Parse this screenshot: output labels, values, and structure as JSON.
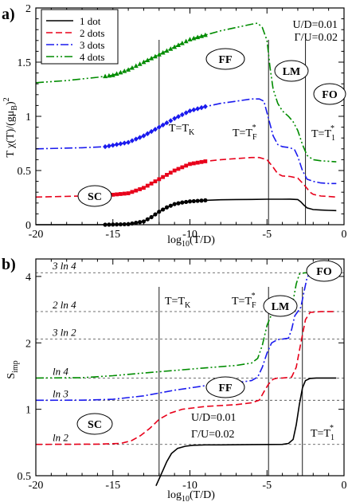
{
  "chart_data": [
    {
      "panel_label": "a)",
      "type": "line",
      "ylabel": "T χ(T)/(gμ",
      "ylabel_sub": "B",
      "ylabel_end": ")",
      "ylabel_sup": "2",
      "xlabel": "log",
      "xlabel_sub": "10",
      "xlabel_end": "(T/D)",
      "xlim": [
        -20,
        0
      ],
      "ylim": [
        0,
        2
      ],
      "xticks": [
        -20,
        -15,
        -10,
        -5,
        0
      ],
      "yticks": [
        0,
        0.5,
        1,
        1.5,
        2
      ],
      "ytick_labels": [
        "0",
        "0.5",
        "1",
        "1.5",
        "2"
      ],
      "legend_position": "top-left",
      "params": [
        "U/D=0.01",
        "Γ/U=0.02"
      ],
      "series": [
        {
          "name": "1 dot",
          "color": "#000000",
          "dash": "solid",
          "marker": "circle",
          "x": [
            -20,
            -15.5,
            -14,
            -13,
            -12.5,
            -12,
            -11.5,
            -11,
            -10.5,
            -10,
            -9.5,
            -9,
            -8,
            -7,
            -6,
            -5,
            -4,
            -3.5,
            -3,
            -2.8,
            -2.6,
            -2.4,
            -2,
            -1.5,
            -1,
            -0.5
          ],
          "y": [
            0,
            0,
            0.005,
            0.03,
            0.07,
            0.12,
            0.16,
            0.19,
            0.205,
            0.215,
            0.22,
            0.225,
            0.23,
            0.232,
            0.233,
            0.235,
            0.235,
            0.236,
            0.232,
            0.21,
            0.18,
            0.155,
            0.14,
            0.135,
            0.132,
            0.13
          ],
          "marker_range": [
            -15.5,
            -9
          ]
        },
        {
          "name": "2 dots",
          "color": "#e8001a",
          "dash": "8,4",
          "marker": "square",
          "x": [
            -20,
            -17,
            -15.5,
            -14,
            -13,
            -12,
            -11,
            -10,
            -9,
            -8,
            -7,
            -6,
            -5.5,
            -5,
            -4.6,
            -4.3,
            -4,
            -3.5,
            -3,
            -2.6,
            -2.2,
            -2,
            -1.5,
            -1,
            -0.5
          ],
          "y": [
            0.255,
            0.265,
            0.27,
            0.29,
            0.34,
            0.42,
            0.5,
            0.56,
            0.585,
            0.6,
            0.61,
            0.62,
            0.62,
            0.6,
            0.53,
            0.47,
            0.45,
            0.445,
            0.43,
            0.37,
            0.3,
            0.28,
            0.265,
            0.26,
            0.255
          ],
          "marker_range": [
            -15.5,
            -9
          ]
        },
        {
          "name": "3 dots",
          "color": "#1a1aee",
          "dash": "10,3,2,3",
          "marker": "diamond",
          "x": [
            -20,
            -17,
            -15.5,
            -14,
            -13,
            -12,
            -11,
            -10,
            -9,
            -8,
            -7,
            -6,
            -5.5,
            -5.2,
            -4.9,
            -4.6,
            -4.3,
            -4,
            -3.5,
            -3.2,
            -3,
            -2.7,
            -2.4,
            -2,
            -1.5,
            -1,
            -0.5
          ],
          "y": [
            0.7,
            0.71,
            0.72,
            0.76,
            0.82,
            0.9,
            0.98,
            1.05,
            1.09,
            1.12,
            1.14,
            1.16,
            1.16,
            1.14,
            0.98,
            0.82,
            0.74,
            0.72,
            0.71,
            0.69,
            0.63,
            0.5,
            0.42,
            0.4,
            0.385,
            0.38,
            0.38
          ],
          "marker_range": [
            -15.5,
            -9
          ]
        },
        {
          "name": "4 dots",
          "color": "#008c00",
          "dash": "10,3,2,3,2,3",
          "marker": "triangle",
          "x": [
            -20,
            -18,
            -16,
            -15,
            -14,
            -13,
            -12,
            -11,
            -10,
            -9,
            -8,
            -7,
            -6,
            -5.6,
            -5.3,
            -5,
            -4.8,
            -4.6,
            -4.3,
            -4,
            -3.6,
            -3.3,
            -3,
            -2.7,
            -2.4,
            -2,
            -1.5,
            -1,
            -0.5
          ],
          "y": [
            1.31,
            1.33,
            1.36,
            1.38,
            1.43,
            1.5,
            1.57,
            1.64,
            1.71,
            1.75,
            1.79,
            1.82,
            1.85,
            1.86,
            1.82,
            1.7,
            1.45,
            1.25,
            1.12,
            1.05,
            1.0,
            0.95,
            0.87,
            0.74,
            0.64,
            0.6,
            0.59,
            0.585,
            0.58
          ],
          "marker_range": [
            -15.5,
            -9
          ]
        }
      ],
      "vlines": [
        {
          "x": -12,
          "label": "T=T",
          "sub": "K",
          "sup": ""
        },
        {
          "x": -4.9,
          "label": "T=T",
          "sub": "F",
          "sup": "*"
        },
        {
          "x": -2.5,
          "label": "T=T",
          "sub": "1",
          "sup": "*"
        }
      ],
      "regions": [
        "FF",
        "LM",
        "FO",
        "SC"
      ]
    },
    {
      "panel_label": "b)",
      "type": "line",
      "ylabel": "S",
      "ylabel_sub": "imp",
      "xlabel": "log",
      "xlabel_sub": "10",
      "xlabel_end": "(T/D)",
      "xlim": [
        -20,
        0
      ],
      "ylim_ln": [
        0.5,
        4.8
      ],
      "yscale": "log",
      "xticks": [
        -20,
        -15,
        -10,
        -5,
        0
      ],
      "yticks": [
        0.5,
        1,
        2,
        4
      ],
      "ytick_labels": [
        "0.5",
        "1",
        "2",
        "4"
      ],
      "params": [
        "U/D=0.01",
        "Γ/U=0.02"
      ],
      "reference_lines": [
        {
          "label": "3 ln 4",
          "value": 4.159
        },
        {
          "label": "2 ln 4",
          "value": 2.773
        },
        {
          "label": "3 ln 2",
          "value": 2.079
        },
        {
          "label": "ln 4",
          "value": 1.386
        },
        {
          "label": "ln 3",
          "value": 1.099
        },
        {
          "label": "ln 2",
          "value": 0.693
        }
      ],
      "series": [
        {
          "name": "1 dot",
          "color": "#000000",
          "dash": "solid",
          "x": [
            -12.2,
            -11.8,
            -11.5,
            -11.2,
            -10.8,
            -10.3,
            -9.8,
            -9,
            -8,
            -6,
            -4,
            -3.6,
            -3.3,
            -3.1,
            -2.9,
            -2.7,
            -2.5,
            -2.2,
            -1.8,
            -1,
            -0.5
          ],
          "y": [
            0.45,
            0.52,
            0.58,
            0.63,
            0.665,
            0.68,
            0.687,
            0.69,
            0.69,
            0.692,
            0.693,
            0.7,
            0.73,
            0.85,
            1.05,
            1.25,
            1.35,
            1.38,
            1.386,
            1.386,
            1.386
          ]
        },
        {
          "name": "2 dots",
          "color": "#e8001a",
          "dash": "8,4",
          "marker": "none",
          "x": [
            -20,
            -16,
            -14.5,
            -13.8,
            -13.2,
            -12.6,
            -12,
            -11.3,
            -10.5,
            -9,
            -7,
            -6,
            -5.5,
            -5.2,
            -4.9,
            -4.6,
            -4.3,
            -4,
            -3.4,
            -3.1,
            -2.8,
            -2.5,
            -2.2,
            -1.5,
            -0.5
          ],
          "y": [
            0.693,
            0.695,
            0.7,
            0.72,
            0.76,
            0.82,
            0.9,
            0.96,
            1.0,
            1.03,
            1.05,
            1.07,
            1.1,
            1.2,
            1.3,
            1.37,
            1.386,
            1.386,
            1.4,
            1.55,
            2.0,
            2.55,
            2.75,
            2.77,
            2.773
          ]
        },
        {
          "name": "3 dots",
          "color": "#1a1aee",
          "dash": "10,3,2,3",
          "x": [
            -20,
            -17,
            -15,
            -13,
            -11,
            -9,
            -7,
            -6,
            -5.6,
            -5.3,
            -5,
            -4.7,
            -4.3,
            -4,
            -3.6,
            -3.4,
            -3.2,
            -3,
            -2.8,
            -2.6,
            -2.4,
            -2.2,
            -1.5,
            -0.5
          ],
          "y": [
            1.099,
            1.1,
            1.11,
            1.15,
            1.22,
            1.28,
            1.32,
            1.35,
            1.4,
            1.55,
            1.8,
            2.0,
            2.07,
            2.079,
            2.1,
            2.3,
            2.65,
            2.77,
            2.9,
            3.4,
            3.95,
            4.15,
            4.159,
            4.159
          ]
        },
        {
          "name": "4 dots",
          "color": "#008c00",
          "dash": "10,3,2,3,2,3",
          "x": [
            -20,
            -17,
            -15,
            -13,
            -11,
            -9,
            -7,
            -6,
            -5.6,
            -5.3,
            -5,
            -4.7,
            -4.3,
            -4,
            -3.6,
            -3.3,
            -3.1,
            -2.9,
            -2.6,
            -2.3,
            -2,
            -1.5,
            -0.5
          ],
          "y": [
            1.386,
            1.39,
            1.42,
            1.46,
            1.5,
            1.54,
            1.58,
            1.62,
            1.7,
            1.95,
            2.4,
            2.7,
            2.77,
            2.78,
            2.8,
            3.1,
            3.7,
            4.1,
            4.15,
            4.159,
            4.159,
            4.159,
            4.159
          ]
        }
      ],
      "vlines": [
        {
          "x": -12,
          "label": "T=T",
          "sub": "K",
          "sup": ""
        },
        {
          "x": -4.9,
          "label": "T=T",
          "sub": "F",
          "sup": "*"
        },
        {
          "x": -2.7,
          "label": "T=T",
          "sub": "1",
          "sup": "*"
        }
      ],
      "regions": [
        "FO",
        "LM",
        "FF",
        "SC"
      ]
    }
  ]
}
